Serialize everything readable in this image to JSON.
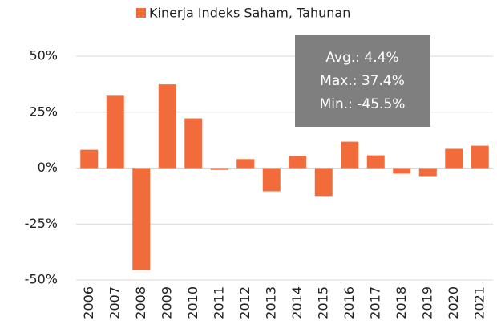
{
  "chart_data": {
    "type": "bar",
    "categories": [
      "2006",
      "2007",
      "2008",
      "2009",
      "2010",
      "2011",
      "2012",
      "2013",
      "2014",
      "2015",
      "2016",
      "2017",
      "2018",
      "2019",
      "2020",
      "2021"
    ],
    "series": [
      {
        "name": "Kinerja Indeks Saham, Tahunan",
        "color": "#f26b3a",
        "values": [
          8.2,
          32.3,
          -45.5,
          37.4,
          22.2,
          -0.8,
          4,
          -10.4,
          5.4,
          -12.5,
          11.8,
          5.7,
          -2.5,
          -3.6,
          8.6,
          10
        ]
      }
    ],
    "ylim": [
      -50,
      50
    ],
    "yticks": [
      {
        "value": -50,
        "label": "-50%"
      },
      {
        "value": -25,
        "label": "-25%"
      },
      {
        "value": 0,
        "label": "0%"
      },
      {
        "value": 25,
        "label": "25%"
      },
      {
        "value": 50,
        "label": "50%"
      }
    ],
    "grid": true,
    "legend": "top",
    "annotation": [
      "Avg.: 4.4%",
      "Max.: 37.4%",
      "Min.: -45.5%"
    ]
  }
}
